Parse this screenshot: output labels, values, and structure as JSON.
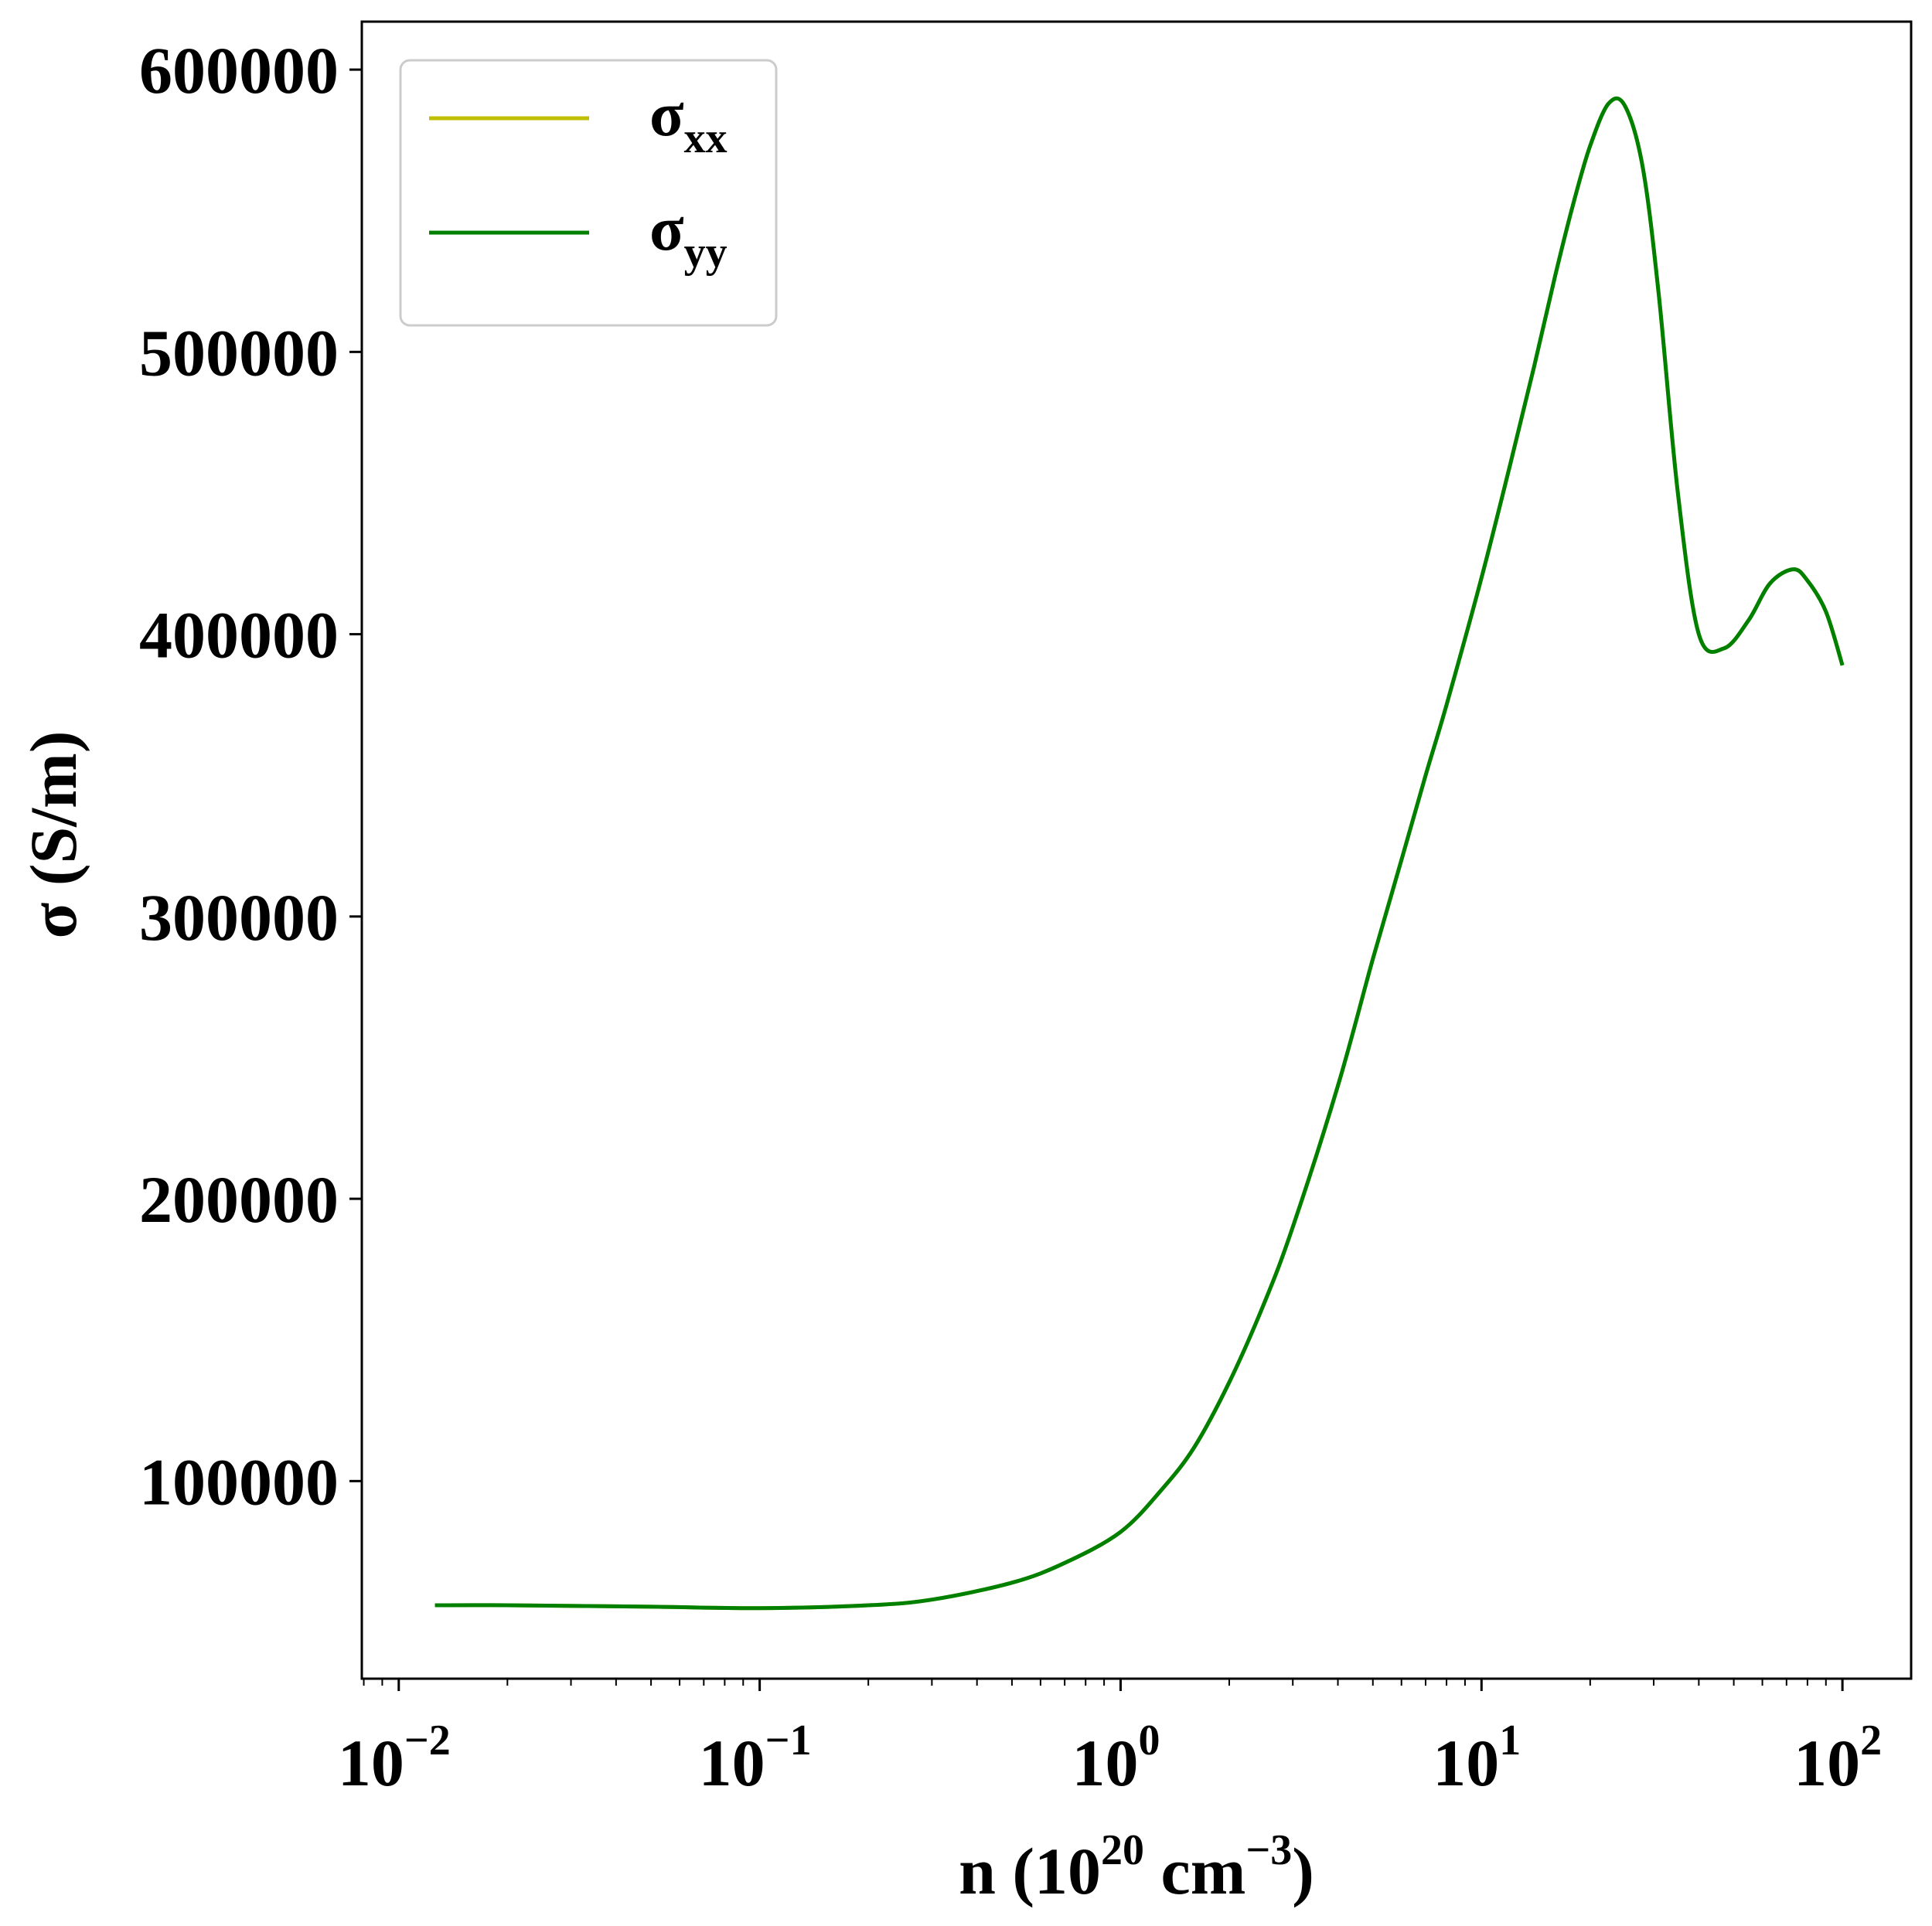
{
  "chart_data": {
    "type": "line",
    "xscale": "log",
    "xlim": [
      0.0079,
      155
    ],
    "ylim": [
      30000,
      617000
    ],
    "xlabel": {
      "prefix": "n (10",
      "sup1": "20",
      "mid": " cm",
      "sup2": "−3",
      "suffix": ")"
    },
    "ylabel": "σ (S/m)",
    "xticks": [
      {
        "value": 0.01,
        "base": "10",
        "exp": "−2"
      },
      {
        "value": 0.1,
        "base": "10",
        "exp": "−1"
      },
      {
        "value": 1,
        "base": "10",
        "exp": "0"
      },
      {
        "value": 10,
        "base": "10",
        "exp": "1"
      },
      {
        "value": 100,
        "base": "10",
        "exp": "2"
      }
    ],
    "yticks": [
      {
        "value": 100000,
        "label": "100000"
      },
      {
        "value": 200000,
        "label": "200000"
      },
      {
        "value": 300000,
        "label": "300000"
      },
      {
        "value": 400000,
        "label": "400000"
      },
      {
        "value": 500000,
        "label": "500000"
      },
      {
        "value": 600000,
        "label": "600000"
      }
    ],
    "grid": false,
    "legend": {
      "position": "top-left"
    },
    "series": [
      {
        "name": "σ",
        "sub": "xx",
        "color": "#bfbf00",
        "x": [
          0.0126,
          0.02,
          0.05,
          0.1,
          0.2,
          0.3,
          0.5,
          0.7,
          1.0,
          1.3,
          1.6,
          2.0,
          2.5,
          3.0,
          4.0,
          5.0,
          6.0,
          7.0,
          8.0,
          10.0,
          12.0,
          14.0,
          16.0,
          18.0,
          20.0,
          22.5,
          25.0,
          28.0,
          31.0,
          35.0,
          40.0,
          47.0,
          55.0,
          63.0,
          73.0,
          80.0,
          90.0,
          100.0
        ],
        "y": [
          56000,
          56000,
          55500,
          55000,
          56000,
          58000,
          64000,
          71000,
          82000,
          97000,
          112000,
          135000,
          163000,
          190000,
          240000,
          285000,
          320000,
          350000,
          375000,
          420000,
          460000,
          495000,
          527000,
          553000,
          573000,
          588000,
          587000,
          565000,
          520000,
          450000,
          400000,
          395000,
          405000,
          418000,
          423000,
          419000,
          408000,
          389000
        ]
      },
      {
        "name": "σ",
        "sub": "yy",
        "color": "#008000",
        "x": [
          0.0126,
          0.02,
          0.05,
          0.1,
          0.2,
          0.3,
          0.5,
          0.7,
          1.0,
          1.3,
          1.6,
          2.0,
          2.5,
          3.0,
          4.0,
          5.0,
          6.0,
          7.0,
          8.0,
          10.0,
          12.0,
          14.0,
          16.0,
          18.0,
          20.0,
          22.5,
          25.0,
          28.0,
          31.0,
          35.0,
          40.0,
          47.0,
          55.0,
          63.0,
          73.0,
          80.0,
          90.0,
          100.0
        ],
        "y": [
          56000,
          56000,
          55500,
          55000,
          56000,
          58000,
          64000,
          71000,
          82000,
          97000,
          112000,
          135000,
          163000,
          190000,
          240000,
          285000,
          320000,
          350000,
          375000,
          420000,
          460000,
          495000,
          527000,
          553000,
          573000,
          588000,
          587000,
          565000,
          520000,
          450000,
          400000,
          395000,
          405000,
          418000,
          423000,
          419000,
          408000,
          389000
        ]
      }
    ]
  }
}
